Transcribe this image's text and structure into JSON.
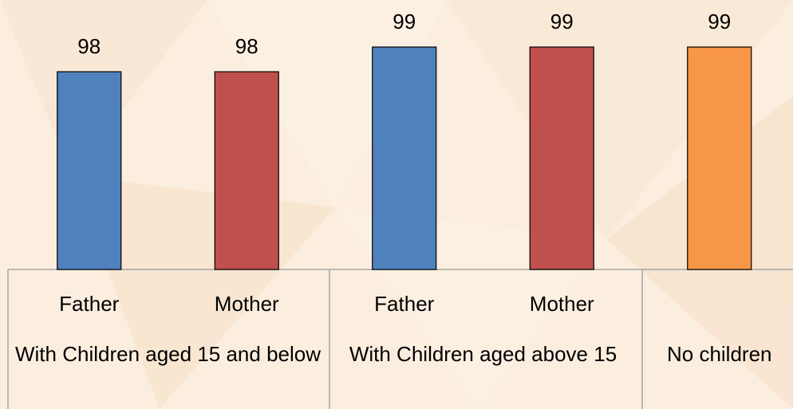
{
  "chart_data": {
    "type": "bar",
    "categories": [
      "Father",
      "Mother",
      "Father",
      "Mother",
      null
    ],
    "groups": [
      "With Children aged 15 and below",
      "With Children aged above 15",
      "No children"
    ],
    "values": [
      98,
      98,
      99,
      99,
      99
    ],
    "colors": [
      "#4f81bd",
      "#c0504d",
      "#4f81bd",
      "#c0504d",
      "#f79646"
    ],
    "ylim": [
      90,
      100
    ]
  }
}
